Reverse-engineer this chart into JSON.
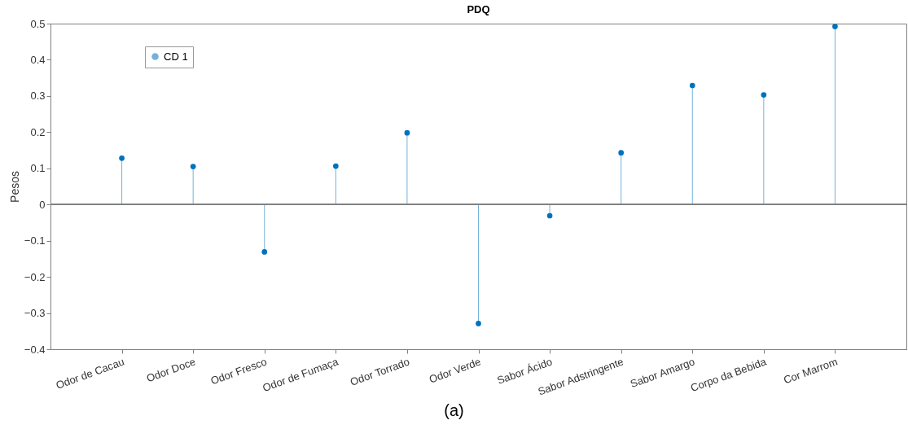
{
  "chart_data": {
    "type": "lollipop",
    "title": "PDQ",
    "ylabel": "Pesos",
    "categories": [
      "Odor de Cacau",
      "Odor Doce",
      "Odor Fresco",
      "Odor de Fumaça",
      "Odor Torrado",
      "Odor Verde",
      "Sabor Ácido",
      "Sabor Adstringente",
      "Sabor Amargo",
      "Corpo da Bebida",
      "Cor Marrom"
    ],
    "series": [
      {
        "name": "CD 1",
        "color": "#0072bd",
        "values": [
          0.128,
          0.105,
          -0.131,
          0.106,
          0.198,
          -0.329,
          -0.031,
          0.143,
          0.329,
          0.303,
          0.492
        ]
      }
    ],
    "ylim": [
      -0.4,
      0.5
    ],
    "yticks": [
      -0.4,
      -0.3,
      -0.2,
      -0.1,
      0,
      0.1,
      0.2,
      0.3,
      0.4,
      0.5
    ],
    "ref_lines": [
      {
        "axis": "y",
        "value": 0,
        "color": "#808080"
      }
    ],
    "legend": "top left",
    "marker": "circle",
    "grid": false,
    "annotations": [
      "(a)"
    ]
  }
}
